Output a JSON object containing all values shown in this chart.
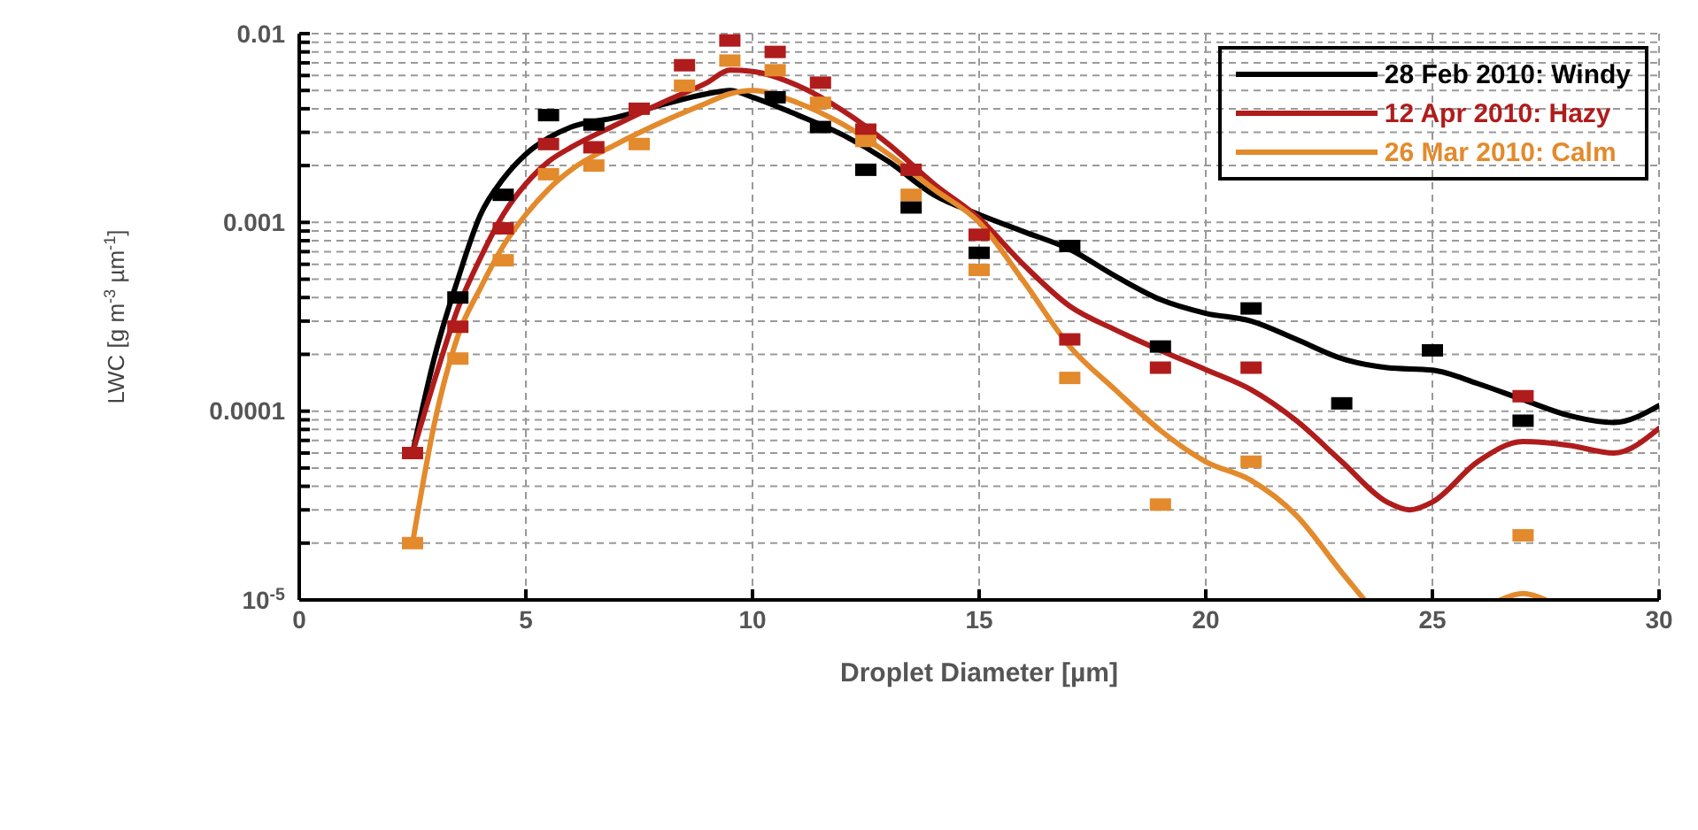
{
  "chart_data": {
    "type": "line",
    "xlabel": "Droplet Diameter [µm]",
    "ylabel": "LWC [g m$^{-3}$ µm$^{-1}$]",
    "log": "y",
    "grid": true,
    "legend": "top right",
    "line_style": "solid",
    "xlim": [
      0,
      30
    ],
    "xticks": [
      0,
      5,
      10,
      15,
      20,
      25,
      30
    ],
    "ylim": [
      1e-05,
      0.01
    ],
    "yticks": [
      {
        "value": 1e-05,
        "label": "10$^{-5}$"
      },
      {
        "value": 2e-05,
        "label": null
      },
      {
        "value": 3e-05,
        "label": null
      },
      {
        "value": 4e-05,
        "label": null
      },
      {
        "value": 5e-05,
        "label": null
      },
      {
        "value": 6e-05,
        "label": null
      },
      {
        "value": 7e-05,
        "label": null
      },
      {
        "value": 8e-05,
        "label": null
      },
      {
        "value": 9e-05,
        "label": null
      },
      0.0001,
      {
        "value": 0.0002,
        "label": null
      },
      {
        "value": 0.0003,
        "label": null
      },
      {
        "value": 0.0004,
        "label": null
      },
      {
        "value": 0.0005,
        "label": null
      },
      {
        "value": 0.0006,
        "label": null
      },
      {
        "value": 0.0007,
        "label": null
      },
      {
        "value": 0.0008,
        "label": null
      },
      {
        "value": 0.0009,
        "label": null
      },
      0.001,
      {
        "value": 0.002,
        "label": null
      },
      {
        "value": 0.003,
        "label": null
      },
      {
        "value": 0.004,
        "label": null
      },
      {
        "value": 0.005,
        "label": null
      },
      {
        "value": 0.006,
        "label": null
      },
      {
        "value": 0.007,
        "label": null
      },
      {
        "value": 0.008,
        "label": null
      },
      {
        "value": 0.009,
        "label": null
      },
      0.01
    ],
    "series": [
      {
        "name": "28 Feb 2010: Windy",
        "color": "#000000",
        "marker": "none",
        "x": [
          2.5,
          3,
          3.5,
          4,
          4.5,
          5,
          5.5,
          6,
          7,
          8,
          9,
          9.5,
          10,
          11,
          12,
          13,
          14,
          15,
          16,
          17,
          18,
          19,
          20,
          21,
          22,
          23,
          24,
          25,
          26,
          27,
          28,
          29,
          30
        ],
        "values": [
          6e-05,
          0.0002,
          0.0005,
          0.0011,
          0.0017,
          0.0023,
          0.0028,
          0.0032,
          0.0036,
          0.0042,
          0.0048,
          0.005,
          0.0046,
          0.0037,
          0.0029,
          0.0021,
          0.0014,
          0.0011,
          0.00089,
          0.00072,
          0.00052,
          0.00039,
          0.00033,
          0.0003,
          0.00024,
          0.00019,
          0.00017,
          0.000165,
          0.00014,
          0.000115,
          9.5e-05,
          8.7e-05,
          0.000107
        ]
      },
      {
        "name": "12 Apr 2010: Hazy",
        "color": "#b01c1c",
        "marker": "none",
        "x": [
          2.5,
          3,
          3.5,
          4,
          4.5,
          5,
          5.5,
          6,
          7,
          8,
          9,
          9.5,
          10,
          11,
          12,
          13,
          14,
          15,
          16,
          17,
          18,
          19,
          20,
          21,
          22,
          23,
          24,
          24.5,
          25,
          26,
          27,
          28,
          29,
          30
        ],
        "values": [
          6e-05,
          0.00015,
          0.00035,
          0.00065,
          0.0011,
          0.0016,
          0.0021,
          0.0025,
          0.0033,
          0.0043,
          0.0055,
          0.0064,
          0.0063,
          0.0053,
          0.0039,
          0.0026,
          0.0016,
          0.00105,
          0.00059,
          0.00036,
          0.00027,
          0.00021,
          0.000166,
          0.00013,
          8.9e-05,
          5.4e-05,
          3.3e-05,
          3e-05,
          3.3e-05,
          5.4e-05,
          6.9e-05,
          6.6e-05,
          6e-05,
          8.1e-05
        ]
      },
      {
        "name": "26 Mar 2010: Calm",
        "color": "#e38a2c",
        "marker": "none",
        "x": [
          2.5,
          3,
          3.5,
          4,
          4.5,
          5,
          5.5,
          6,
          7,
          8,
          9,
          9.5,
          10,
          11,
          12,
          13,
          14,
          15,
          16,
          17,
          18,
          19,
          20,
          21,
          22,
          23,
          23.5,
          25,
          26.5,
          27,
          27.5
        ],
        "values": [
          2e-05,
          9e-05,
          0.00025,
          0.00045,
          0.00075,
          0.0011,
          0.0015,
          0.0019,
          0.0026,
          0.0034,
          0.0043,
          0.0048,
          0.005,
          0.0043,
          0.0033,
          0.0023,
          0.0015,
          0.001,
          0.00048,
          0.00022,
          0.00013,
          7.9e-05,
          5.4e-05,
          4.3e-05,
          2.8e-05,
          1.4e-05,
          1e-05,
          null,
          1e-05,
          1.08e-05,
          1e-05
        ]
      },
      {
        "type": "scatter",
        "color": "#000000",
        "marker": "square",
        "x": [
          3.5,
          4.5,
          5.5,
          6.5,
          10.5,
          11.5,
          12.5,
          13.5,
          15,
          17,
          19,
          21,
          23,
          25,
          27
        ],
        "values": [
          0.0004,
          0.0014,
          0.0037,
          0.0033,
          0.0046,
          0.0032,
          0.0019,
          0.0012,
          0.00069,
          0.00075,
          0.00022,
          0.00035,
          0.00011,
          0.00021,
          8.9e-05
        ]
      },
      {
        "type": "scatter",
        "color": "#b01c1c",
        "marker": "square",
        "x": [
          2.5,
          3.5,
          4.5,
          5.5,
          6.5,
          7.5,
          8.5,
          9.5,
          10.5,
          11.5,
          12.5,
          13.5,
          15,
          17,
          19,
          21,
          27
        ],
        "values": [
          6e-05,
          0.00028,
          0.00093,
          0.0026,
          0.0025,
          0.004,
          0.0068,
          0.0092,
          0.008,
          0.0055,
          0.0031,
          0.0019,
          0.00086,
          0.00024,
          0.00017,
          0.00017,
          0.00012
        ]
      },
      {
        "type": "scatter",
        "color": "#e38a2c",
        "marker": "square",
        "x": [
          2.5,
          3.5,
          4.5,
          5.5,
          6.5,
          7.5,
          8.5,
          9.5,
          10.5,
          11.5,
          12.5,
          13.5,
          15,
          17,
          19,
          21,
          27
        ],
        "values": [
          2e-05,
          0.00019,
          0.00063,
          0.0018,
          0.002,
          0.0026,
          0.0053,
          0.0072,
          0.0064,
          0.0043,
          0.0027,
          0.0014,
          0.00056,
          0.00015,
          3.2e-05,
          5.4e-05,
          2.2e-05
        ]
      }
    ]
  }
}
